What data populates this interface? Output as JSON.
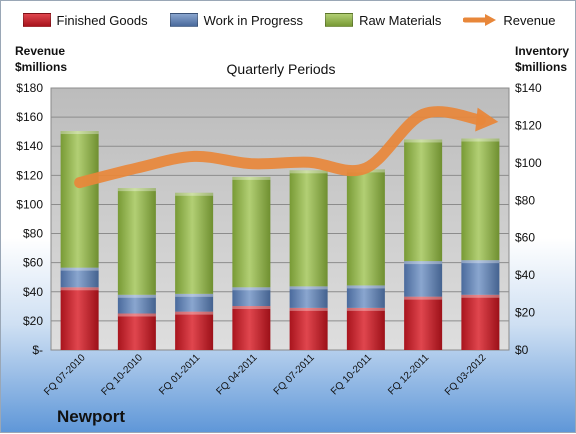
{
  "legend": {
    "finished": "Finished Goods",
    "wip": "Work in Progress",
    "raw": "Raw Materials",
    "revenue": "Revenue"
  },
  "axis_titles": {
    "left_line1": "Revenue",
    "left_line2": "$millions",
    "right_line1": "Inventory",
    "right_line2": "$millions"
  },
  "plot_title": "Quarterly Periods",
  "brand": "Newport",
  "colors": {
    "finished": "#c0202a",
    "wip": "#5b7fb3",
    "raw": "#8fb04a",
    "revenue": "#e8873a",
    "plot_bg": "#c9c9c9"
  },
  "chart_data": {
    "type": "bar",
    "title": "Quarterly Periods",
    "categories": [
      "FQ 07-2010",
      "FQ 10-2010",
      "FQ 01-2011",
      "FQ 04-2011",
      "FQ 07-2011",
      "FQ 10-2011",
      "FQ 12-2011",
      "FQ 03-2012"
    ],
    "stacked": true,
    "left_axis": {
      "label": "Revenue $millions",
      "ylim": [
        0,
        180
      ],
      "ticks": [
        "$-",
        "$20",
        "$40",
        "$60",
        "$80",
        "$100",
        "$120",
        "$140",
        "$160",
        "$180"
      ]
    },
    "right_axis": {
      "label": "Inventory $millions",
      "ylim": [
        0,
        140
      ],
      "ticks": [
        "$0",
        "$20",
        "$40",
        "$60",
        "$80",
        "$100",
        "$120",
        "$140"
      ]
    },
    "series": [
      {
        "name": "Finished Goods",
        "axis": "right",
        "values": [
          33.5,
          19.5,
          20.5,
          23.5,
          22.5,
          22.5,
          28.5,
          29.5
        ]
      },
      {
        "name": "Work in Progress",
        "axis": "right",
        "values": [
          10.5,
          10,
          9.5,
          10,
          11.5,
          12,
          19,
          18.5
        ]
      },
      {
        "name": "Raw Materials",
        "axis": "right",
        "values": [
          73,
          57,
          54,
          59,
          62,
          62,
          65,
          65
        ]
      },
      {
        "name": "Revenue",
        "axis": "left",
        "type": "line",
        "values": [
          115,
          125,
          133,
          128,
          129,
          125,
          162,
          158
        ]
      }
    ],
    "grid": true,
    "legend_position": "top"
  }
}
